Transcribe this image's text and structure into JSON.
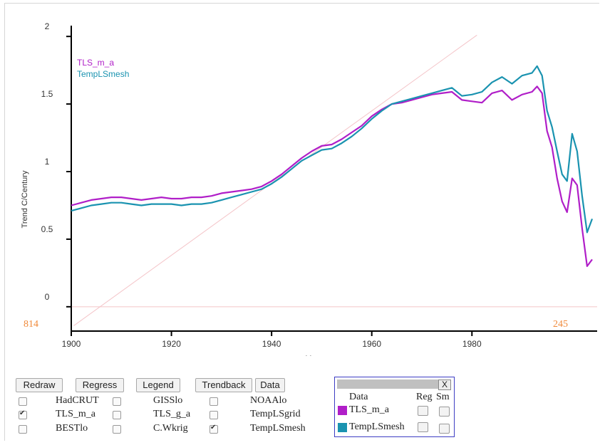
{
  "controls": {
    "buttons": [
      "Redraw",
      "Regress",
      "Legend",
      "Trendback",
      "Data"
    ],
    "checkboxes": [
      {
        "label": "HadCRUT",
        "checked": false
      },
      {
        "label": "GISSlo",
        "checked": false
      },
      {
        "label": "NOAAlo",
        "checked": false
      },
      {
        "label": "TLS_m_a",
        "checked": true
      },
      {
        "label": "TLS_g_a",
        "checked": false
      },
      {
        "label": "TempLSgrid",
        "checked": false
      },
      {
        "label": "BESTlo",
        "checked": false
      },
      {
        "label": "C.Wkrig",
        "checked": false
      },
      {
        "label": "TempLSmesh",
        "checked": true
      }
    ]
  },
  "data_panel": {
    "close": "X",
    "header": {
      "data": "Data",
      "reg": "Reg",
      "sm": "Sm"
    },
    "rows": [
      {
        "name": "TLS_m_a",
        "color": "#b01ec8"
      },
      {
        "name": "TempLSmesh",
        "color": "#1a93b0"
      }
    ]
  },
  "chart_data": {
    "type": "line",
    "xlabel": "Year",
    "ylabel": "Trend C/Century",
    "xlim": [
      1900,
      2005
    ],
    "ylim": [
      -0.18,
      2.08
    ],
    "x_ticks": [
      1900,
      1920,
      1940,
      1960,
      1980
    ],
    "y_ticks": [
      0,
      0.5,
      1,
      1.5,
      2
    ],
    "y_tick_labels": [
      "0",
      "0.5",
      "1",
      "1.5",
      "2"
    ],
    "corner_labels": {
      "left": "814",
      "right": "245"
    },
    "legend_position": "top-left",
    "series": [
      {
        "name": "TLS_m_a",
        "color": "#b01ec8",
        "x": [
          1900,
          1902,
          1904,
          1906,
          1908,
          1910,
          1912,
          1914,
          1916,
          1918,
          1920,
          1922,
          1924,
          1926,
          1928,
          1930,
          1932,
          1934,
          1936,
          1938,
          1940,
          1942,
          1944,
          1946,
          1948,
          1950,
          1952,
          1954,
          1956,
          1958,
          1960,
          1962,
          1964,
          1966,
          1968,
          1970,
          1972,
          1974,
          1976,
          1978,
          1980,
          1982,
          1984,
          1986,
          1988,
          1990,
          1992,
          1993,
          1994,
          1995,
          1996,
          1997,
          1998,
          1999,
          2000,
          2001,
          2002,
          2003,
          2004
        ],
        "y": [
          0.75,
          0.77,
          0.79,
          0.8,
          0.81,
          0.81,
          0.8,
          0.79,
          0.8,
          0.81,
          0.8,
          0.8,
          0.81,
          0.81,
          0.82,
          0.84,
          0.85,
          0.86,
          0.87,
          0.89,
          0.93,
          0.98,
          1.04,
          1.1,
          1.15,
          1.19,
          1.2,
          1.24,
          1.29,
          1.34,
          1.41,
          1.46,
          1.5,
          1.51,
          1.53,
          1.55,
          1.57,
          1.58,
          1.59,
          1.53,
          1.52,
          1.51,
          1.58,
          1.6,
          1.53,
          1.57,
          1.59,
          1.63,
          1.58,
          1.3,
          1.18,
          0.95,
          0.78,
          0.7,
          0.95,
          0.9,
          0.58,
          0.3,
          0.35
        ]
      },
      {
        "name": "TempLSmesh",
        "color": "#1a93b0",
        "x": [
          1900,
          1902,
          1904,
          1906,
          1908,
          1910,
          1912,
          1914,
          1916,
          1918,
          1920,
          1922,
          1924,
          1926,
          1928,
          1930,
          1932,
          1934,
          1936,
          1938,
          1940,
          1942,
          1944,
          1946,
          1948,
          1950,
          1952,
          1954,
          1956,
          1958,
          1960,
          1962,
          1964,
          1966,
          1968,
          1970,
          1972,
          1974,
          1976,
          1978,
          1980,
          1982,
          1984,
          1986,
          1988,
          1990,
          1992,
          1993,
          1994,
          1995,
          1996,
          1997,
          1998,
          1999,
          2000,
          2001,
          2002,
          2003,
          2004
        ],
        "y": [
          0.71,
          0.73,
          0.75,
          0.76,
          0.77,
          0.77,
          0.76,
          0.75,
          0.76,
          0.76,
          0.76,
          0.75,
          0.76,
          0.76,
          0.77,
          0.79,
          0.81,
          0.83,
          0.85,
          0.87,
          0.91,
          0.96,
          1.02,
          1.08,
          1.12,
          1.16,
          1.17,
          1.21,
          1.26,
          1.32,
          1.39,
          1.45,
          1.5,
          1.52,
          1.54,
          1.56,
          1.58,
          1.6,
          1.62,
          1.56,
          1.57,
          1.59,
          1.66,
          1.7,
          1.65,
          1.71,
          1.73,
          1.78,
          1.71,
          1.45,
          1.33,
          1.15,
          0.98,
          0.93,
          1.28,
          1.15,
          0.82,
          0.55,
          0.65
        ]
      }
    ]
  }
}
